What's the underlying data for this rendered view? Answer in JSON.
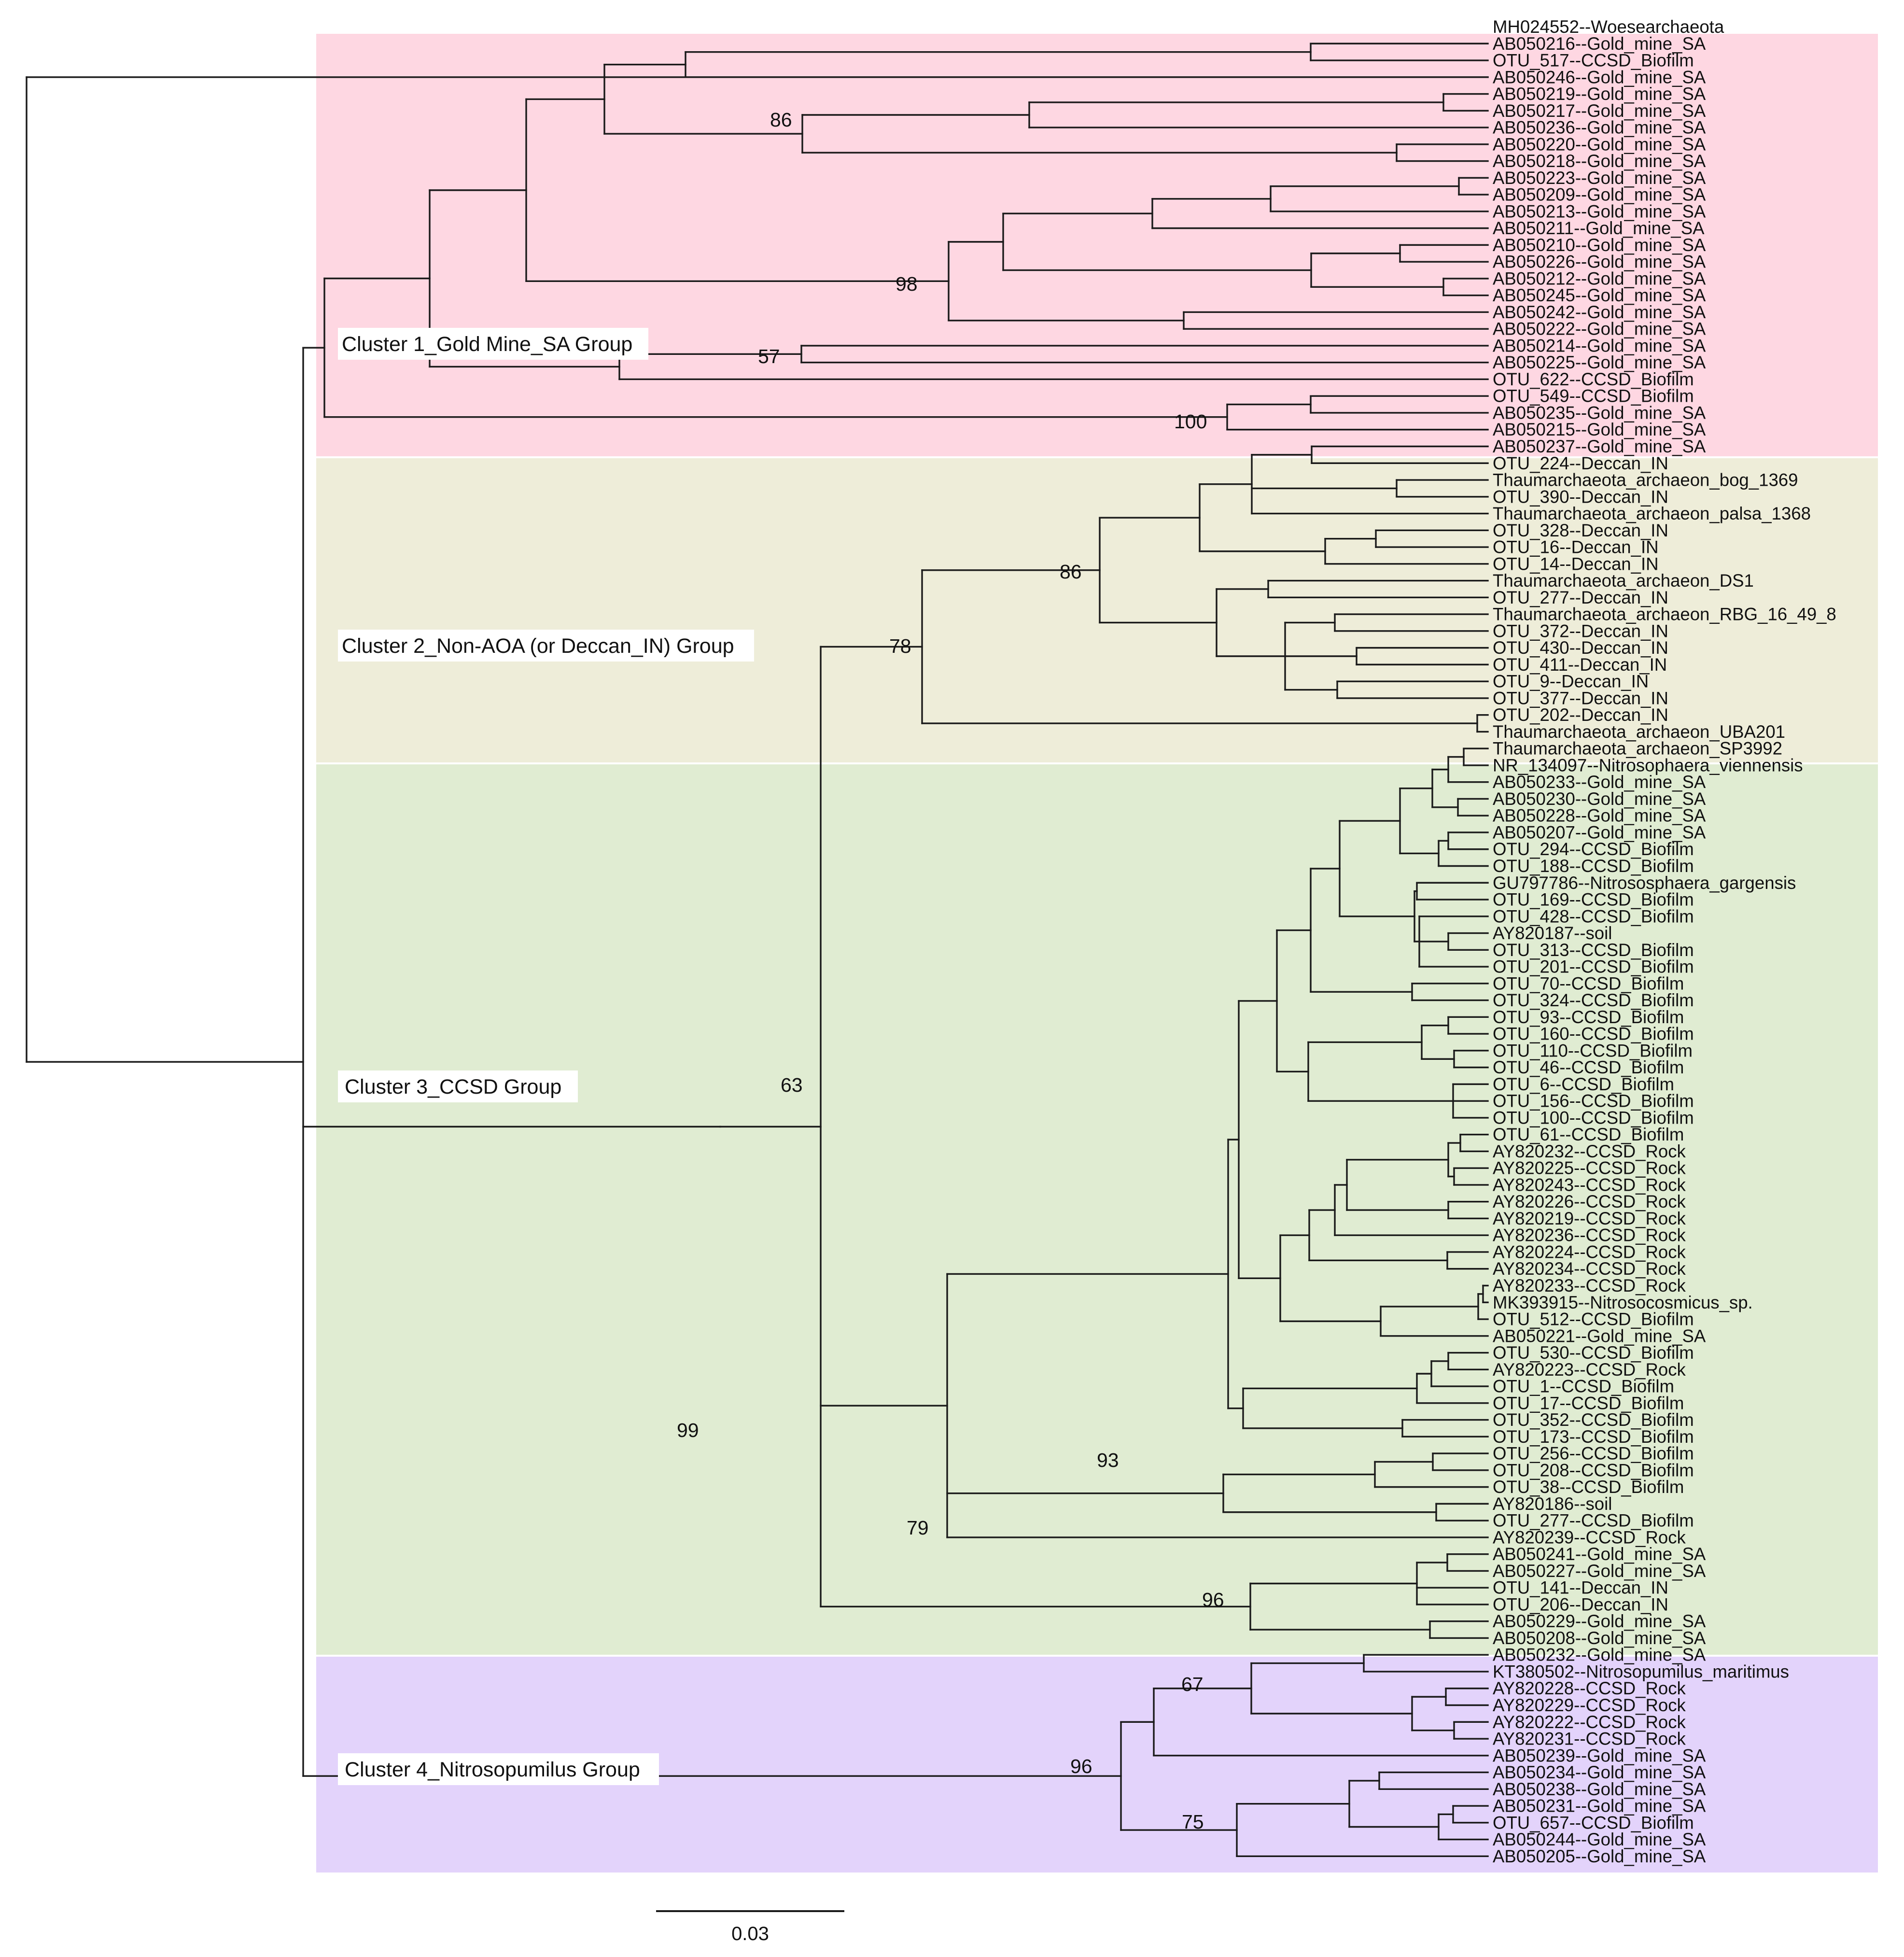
{
  "colors": {
    "cluster1": "#fed7e2",
    "cluster2": "#eeedd9",
    "cluster3": "#e0ecd2",
    "cluster4": "#e3d3fb",
    "label_box": "#ffffff",
    "line": "#1a1a1a"
  },
  "clusters": [
    {
      "id": 1,
      "label": "Cluster 1_Gold Mine_SA Group",
      "first": 1,
      "last": 25
    },
    {
      "id": 2,
      "label": "Cluster 2_Non-AOA (or Deccan_IN) Group",
      "first": 26,
      "last": 43
    },
    {
      "id": 3,
      "label": "Cluster 3_CCSD Group",
      "first": 44,
      "last": 96
    },
    {
      "id": 4,
      "label": "Cluster 4_Nitrosopumilus Group",
      "first": 97,
      "last": 109
    }
  ],
  "leaves": [
    "MH024552--Woesearchaeota",
    "AB050216--Gold_mine_SA",
    "OTU_517--CCSD_Biofilm",
    "AB050246--Gold_mine_SA",
    "AB050219--Gold_mine_SA",
    "AB050217--Gold_mine_SA",
    "AB050236--Gold_mine_SA",
    "AB050220--Gold_mine_SA",
    "AB050218--Gold_mine_SA",
    "AB050223--Gold_mine_SA",
    "AB050209--Gold_mine_SA",
    "AB050213--Gold_mine_SA",
    "AB050211--Gold_mine_SA",
    "AB050210--Gold_mine_SA",
    "AB050226--Gold_mine_SA",
    "AB050212--Gold_mine_SA",
    "AB050245--Gold_mine_SA",
    "AB050242--Gold_mine_SA",
    "AB050222--Gold_mine_SA",
    "AB050214--Gold_mine_SA",
    "AB050225--Gold_mine_SA",
    "OTU_622--CCSD_Biofilm",
    "OTU_549--CCSD_Biofilm",
    "AB050235--Gold_mine_SA",
    "AB050215--Gold_mine_SA",
    "AB050237--Gold_mine_SA",
    "OTU_224--Deccan_IN",
    "Thaumarchaeota_archaeon_bog_1369",
    "OTU_390--Deccan_IN",
    "Thaumarchaeota_archaeon_palsa_1368",
    "OTU_328--Deccan_IN",
    "OTU_16--Deccan_IN",
    "OTU_14--Deccan_IN",
    "Thaumarchaeota_archaeon_DS1",
    "OTU_277--Deccan_IN",
    "Thaumarchaeota_archaeon_RBG_16_49_8",
    "OTU_372--Deccan_IN",
    "OTU_430--Deccan_IN",
    "OTU_411--Deccan_IN",
    "OTU_9--Deccan_IN",
    "OTU_377--Deccan_IN",
    "OTU_202--Deccan_IN",
    "Thaumarchaeota_archaeon_UBA201",
    "Thaumarchaeota_archaeon_SP3992",
    "NR_134097--Nitrosophaera_viennensis",
    "AB050233--Gold_mine_SA",
    "AB050230--Gold_mine_SA",
    "AB050228--Gold_mine_SA",
    "AB050207--Gold_mine_SA",
    "OTU_294--CCSD_Biofilm",
    "OTU_188--CCSD_Biofilm",
    "GU797786--Nitrososphaera_gargensis",
    "OTU_169--CCSD_Biofilm",
    "OTU_428--CCSD_Biofilm",
    "AY820187--soil",
    "OTU_313--CCSD_Biofilm",
    "OTU_201--CCSD_Biofilm",
    "OTU_70--CCSD_Biofilm",
    "OTU_324--CCSD_Biofilm",
    "OTU_93--CCSD_Biofilm",
    "OTU_160--CCSD_Biofilm",
    "OTU_110--CCSD_Biofilm",
    "OTU_46--CCSD_Biofilm",
    "OTU_6--CCSD_Biofilm",
    "OTU_156--CCSD_Biofilm",
    "OTU_100--CCSD_Biofilm",
    "OTU_61--CCSD_Biofilm",
    "AY820232--CCSD_Rock",
    "AY820225--CCSD_Rock",
    "AY820243--CCSD_Rock",
    "AY820226--CCSD_Rock",
    "AY820219--CCSD_Rock",
    "AY820236--CCSD_Rock",
    "AY820224--CCSD_Rock",
    "AY820234--CCSD_Rock",
    "AY820233--CCSD_Rock",
    "MK393915--Nitrosocosmicus_sp.",
    "OTU_512--CCSD_Biofilm",
    "AB050221--Gold_mine_SA",
    "OTU_530--CCSD_Biofilm",
    "AY820223--CCSD_Rock",
    "OTU_1--CCSD_Biofilm",
    "OTU_17--CCSD_Biofilm",
    "OTU_352--CCSD_Biofilm",
    "OTU_173--CCSD_Biofilm",
    "OTU_256--CCSD_Biofilm",
    "OTU_208--CCSD_Biofilm",
    "OTU_38--CCSD_Biofilm",
    "AY820186--soil",
    "OTU_277--CCSD_Biofilm",
    "AY820239--CCSD_Rock",
    "AB050241--Gold_mine_SA",
    "AB050227--Gold_mine_SA",
    "OTU_141--Deccan_IN",
    "OTU_206--Deccan_IN",
    "AB050229--Gold_mine_SA",
    "AB050208--Gold_mine_SA",
    "AB050232--Gold_mine_SA",
    "KT380502--Nitrosopumilus_maritimus",
    "AY820228--CCSD_Rock",
    "AY820229--CCSD_Rock",
    "AY820222--CCSD_Rock",
    "AY820231--CCSD_Rock",
    "AB050239--Gold_mine_SA",
    "AB050234--Gold_mine_SA",
    "AB050238--Gold_mine_SA",
    "AB050231--Gold_mine_SA",
    "OTU_657--CCSD_Biofilm",
    "AB050244--Gold_mine_SA",
    "AB050205--Gold_mine_SA"
  ],
  "bootstrap": [
    "86",
    "98",
    "57",
    "100",
    "86",
    "78",
    "63",
    "99",
    "79",
    "93",
    "96",
    "67",
    "96",
    "75"
  ],
  "scale": {
    "label": "0.03",
    "value": 0.03
  }
}
